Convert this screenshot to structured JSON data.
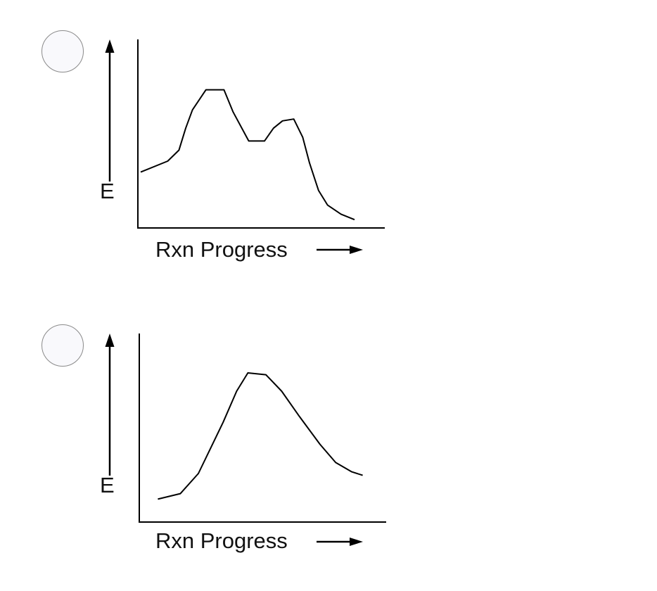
{
  "options": [
    {
      "ylabel": "E",
      "xlabel": "Rxn Progress",
      "curve": [
        [
          0,
          0.29
        ],
        [
          0.12,
          0.35
        ],
        [
          0.17,
          0.41
        ],
        [
          0.2,
          0.53
        ],
        [
          0.23,
          0.63
        ],
        [
          0.29,
          0.74
        ],
        [
          0.37,
          0.74
        ],
        [
          0.41,
          0.62
        ],
        [
          0.48,
          0.46
        ],
        [
          0.55,
          0.46
        ],
        [
          0.59,
          0.53
        ],
        [
          0.63,
          0.57
        ],
        [
          0.68,
          0.58
        ],
        [
          0.72,
          0.48
        ],
        [
          0.75,
          0.34
        ],
        [
          0.79,
          0.19
        ],
        [
          0.83,
          0.11
        ],
        [
          0.89,
          0.06
        ],
        [
          0.95,
          0.03
        ]
      ]
    },
    {
      "ylabel": "E",
      "xlabel": "Rxn Progress",
      "curve": [
        [
          0.07,
          0.11
        ],
        [
          0.17,
          0.14
        ],
        [
          0.25,
          0.25
        ],
        [
          0.36,
          0.53
        ],
        [
          0.42,
          0.7
        ],
        [
          0.47,
          0.8
        ],
        [
          0.55,
          0.79
        ],
        [
          0.62,
          0.7
        ],
        [
          0.7,
          0.56
        ],
        [
          0.79,
          0.41
        ],
        [
          0.86,
          0.31
        ],
        [
          0.93,
          0.26
        ],
        [
          0.98,
          0.24
        ]
      ]
    }
  ]
}
